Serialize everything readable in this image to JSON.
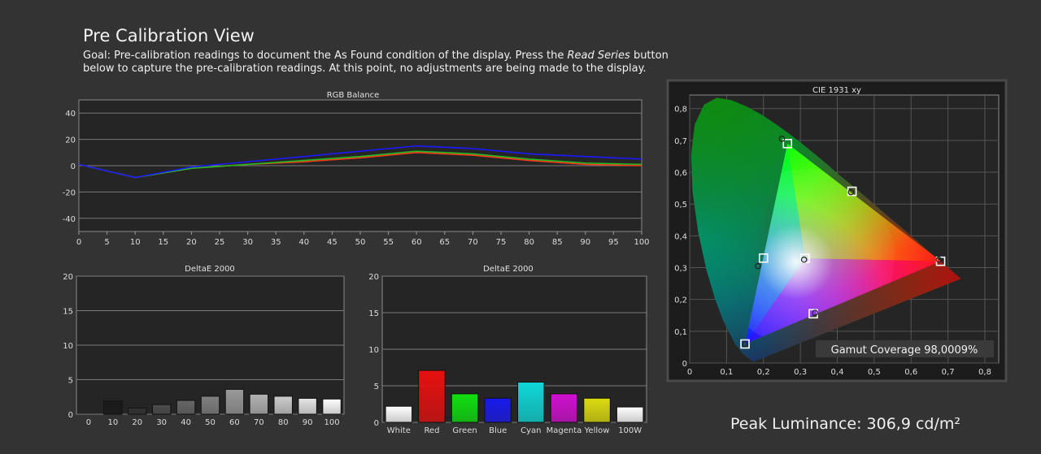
{
  "page": {
    "title": "Pre Calibration View",
    "goal_before": "Goal: Pre-calibration readings to document the As Found condition of the display. Press the ",
    "goal_button": "Read Series",
    "goal_after": " button below to capture the pre-calibration readings. At this point, no adjustments are being made to the display.",
    "peak_luminance": "Peak Luminance: 306,9 cd/m²"
  },
  "chart_data": [
    {
      "id": "rgb",
      "type": "line",
      "title": "RGB Balance",
      "x": [
        0,
        10,
        20,
        30,
        40,
        50,
        60,
        70,
        80,
        90,
        100
      ],
      "xticks": [
        0,
        5,
        10,
        15,
        20,
        25,
        30,
        35,
        40,
        45,
        50,
        55,
        60,
        65,
        70,
        75,
        80,
        85,
        90,
        95,
        100
      ],
      "xlim": [
        0,
        100
      ],
      "yticks": [
        -40,
        -20,
        0,
        20,
        40
      ],
      "ylim": [
        -50,
        50
      ],
      "grid": true,
      "series": [
        {
          "color": "#ff3a1a",
          "values": [
            1,
            -9,
            -2,
            1,
            3,
            6,
            10,
            8,
            4,
            1,
            0
          ]
        },
        {
          "color": "#22bb22",
          "values": [
            1,
            -9,
            -2,
            1,
            4,
            7,
            11,
            9,
            5,
            2,
            1
          ]
        },
        {
          "color": "#1a1aff",
          "values": [
            1,
            -9,
            -1,
            3,
            7,
            11,
            15,
            13,
            9,
            7,
            5
          ]
        }
      ]
    },
    {
      "id": "de_gray",
      "type": "bar",
      "title": "DeltaE 2000",
      "categories": [
        "0",
        "10",
        "20",
        "30",
        "40",
        "50",
        "60",
        "70",
        "80",
        "90",
        "100"
      ],
      "values": [
        0,
        1.9,
        0.9,
        1.4,
        2.0,
        2.6,
        3.6,
        2.9,
        2.6,
        2.3,
        2.2
      ],
      "colors": [
        "#000000",
        "#1a1a1a",
        "#333333",
        "#4d4d4d",
        "#666666",
        "#808080",
        "#999999",
        "#b3b3b3",
        "#cccccc",
        "#e6e6e6",
        "#ffffff"
      ],
      "yticks": [
        0,
        5,
        10,
        15,
        20
      ],
      "ylim": [
        0,
        20
      ],
      "grid": true
    },
    {
      "id": "de_color",
      "type": "bar",
      "title": "DeltaE 2000",
      "categories": [
        "White",
        "Red",
        "Green",
        "Blue",
        "Cyan",
        "Magenta",
        "Yellow",
        "100W"
      ],
      "values": [
        2.2,
        7.1,
        3.9,
        3.3,
        5.5,
        3.9,
        3.3,
        2.1
      ],
      "colors": [
        "#ffffff",
        "#e81010",
        "#10e010",
        "#1a1aee",
        "#10d8d8",
        "#d010d0",
        "#dcdc10",
        "#ffffff"
      ],
      "yticks": [
        0,
        5,
        10,
        15,
        20
      ],
      "ylim": [
        0,
        20
      ],
      "grid": true
    },
    {
      "id": "cie",
      "type": "scatter",
      "title": "CIE 1931 xy",
      "xticks": [
        "0",
        "0,1",
        "0,2",
        "0,3",
        "0,4",
        "0,5",
        "0,6",
        "0,7",
        "0,8"
      ],
      "yticks": [
        "0",
        "0,1",
        "0,2",
        "0,3",
        "0,4",
        "0,5",
        "0,6",
        "0,7",
        "0,8"
      ],
      "xlim": [
        0,
        0.8
      ],
      "ylim": [
        0,
        0.85
      ],
      "gamut_label": "Gamut Coverage 98,0009%",
      "target_points": [
        {
          "name": "red",
          "x": 0.68,
          "y": 0.32
        },
        {
          "name": "green",
          "x": 0.265,
          "y": 0.69
        },
        {
          "name": "blue",
          "x": 0.15,
          "y": 0.06
        },
        {
          "name": "cyan",
          "x": 0.2,
          "y": 0.33
        },
        {
          "name": "yellow",
          "x": 0.44,
          "y": 0.54
        },
        {
          "name": "magenta",
          "x": 0.335,
          "y": 0.155
        },
        {
          "name": "white",
          "x": 0.3127,
          "y": 0.329
        }
      ],
      "measured_points": [
        {
          "name": "red",
          "x": 0.675,
          "y": 0.325
        },
        {
          "name": "green",
          "x": 0.25,
          "y": 0.705
        },
        {
          "name": "blue",
          "x": 0.15,
          "y": 0.06
        },
        {
          "name": "cyan",
          "x": 0.185,
          "y": 0.305
        },
        {
          "name": "yellow",
          "x": 0.437,
          "y": 0.537
        },
        {
          "name": "magenta",
          "x": 0.34,
          "y": 0.158
        },
        {
          "name": "white",
          "x": 0.31,
          "y": 0.325
        }
      ],
      "locus": [
        [
          0.175,
          0.005
        ],
        [
          0.172,
          0.005
        ],
        [
          0.166,
          0.009
        ],
        [
          0.144,
          0.03
        ],
        [
          0.124,
          0.058
        ],
        [
          0.091,
          0.133
        ],
        [
          0.069,
          0.201
        ],
        [
          0.045,
          0.295
        ],
        [
          0.023,
          0.413
        ],
        [
          0.008,
          0.538
        ],
        [
          0.004,
          0.655
        ],
        [
          0.014,
          0.75
        ],
        [
          0.039,
          0.812
        ],
        [
          0.074,
          0.834
        ],
        [
          0.114,
          0.826
        ],
        [
          0.155,
          0.806
        ],
        [
          0.193,
          0.782
        ],
        [
          0.23,
          0.754
        ],
        [
          0.266,
          0.724
        ],
        [
          0.302,
          0.692
        ],
        [
          0.337,
          0.659
        ],
        [
          0.373,
          0.624
        ],
        [
          0.408,
          0.589
        ],
        [
          0.444,
          0.554
        ],
        [
          0.479,
          0.52
        ],
        [
          0.512,
          0.487
        ],
        [
          0.544,
          0.455
        ],
        [
          0.575,
          0.425
        ],
        [
          0.603,
          0.397
        ],
        [
          0.627,
          0.372
        ],
        [
          0.648,
          0.351
        ],
        [
          0.666,
          0.334
        ],
        [
          0.68,
          0.32
        ],
        [
          0.692,
          0.308
        ],
        [
          0.701,
          0.299
        ],
        [
          0.735,
          0.265
        ]
      ]
    }
  ]
}
